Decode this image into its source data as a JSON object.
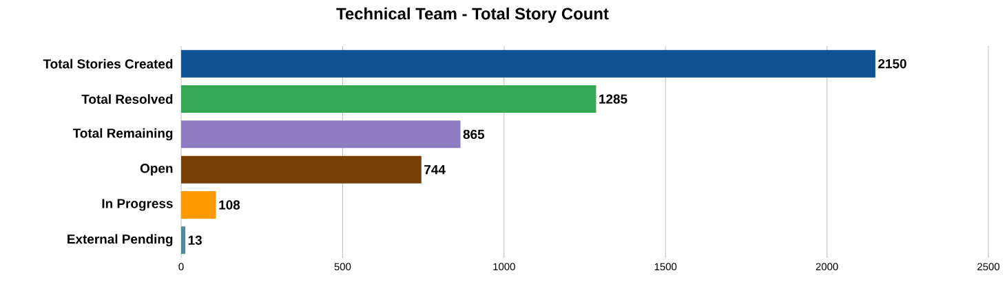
{
  "chart_data": {
    "type": "bar",
    "orientation": "horizontal",
    "title": "Technical Team - Total Story Count",
    "categories": [
      "Total Stories Created",
      "Total Resolved",
      "Total Remaining",
      "Open",
      "In Progress",
      "External Pending"
    ],
    "values": [
      2150,
      1285,
      865,
      744,
      108,
      13
    ],
    "colors": [
      "#0e5394",
      "#35a853",
      "#8e7cc3",
      "#783f04",
      "#ff9900",
      "#4e8b9b"
    ],
    "xlim": [
      0,
      2500
    ],
    "xticks": [
      0,
      500,
      1000,
      1500,
      2000,
      2500
    ],
    "grid": "x",
    "data_labels": true
  }
}
